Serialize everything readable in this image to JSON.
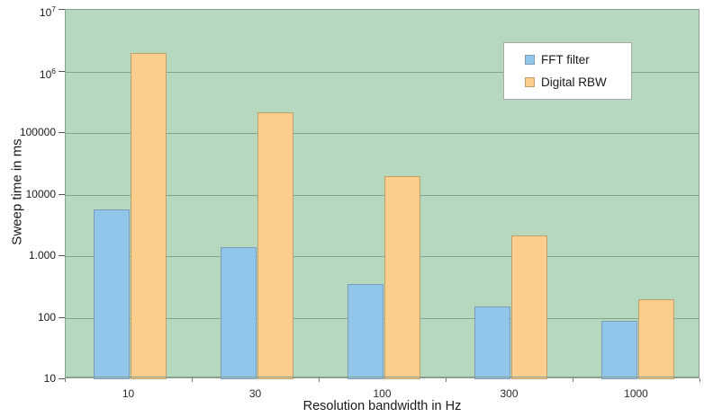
{
  "chart_data": {
    "type": "bar",
    "xlabel": "Resolution bandwidth in Hz",
    "ylabel": "Sweep time in ms",
    "yscale": "log",
    "ylim": [
      10,
      10000000
    ],
    "grid": true,
    "legend_position": "upper right",
    "plot_bg": "#b5d8bf",
    "grid_color": "#84a38d",
    "categories": [
      "10",
      "30",
      "100",
      "300",
      "1000"
    ],
    "ytick_labels": [
      "10",
      "100",
      "1.000",
      "10000",
      "100000",
      "10^6",
      "10^7"
    ],
    "series": [
      {
        "name": "FFT filter",
        "color": "#92c5ea",
        "border_color": "#7e9cb5",
        "values": [
          5800,
          1400,
          350,
          150,
          90
        ]
      },
      {
        "name": "Digital RBW",
        "color": "#fcce8d",
        "border_color": "#bfa06a",
        "values": [
          2000000,
          220000,
          20000,
          2200,
          200
        ]
      }
    ]
  }
}
